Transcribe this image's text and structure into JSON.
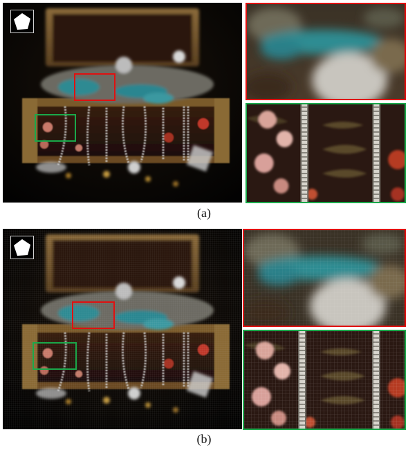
{
  "panels": [
    {
      "caption": "(a)",
      "variant": "clean",
      "zoom_borders": {
        "red": "#e01010",
        "green": "#1aa84a"
      }
    },
    {
      "caption": "(b)",
      "variant": "gridded",
      "zoom_borders": {
        "red": "#e01010",
        "green": "#1aa84a"
      }
    }
  ],
  "icons": {
    "aperture": "pentagon-aperture-icon"
  }
}
